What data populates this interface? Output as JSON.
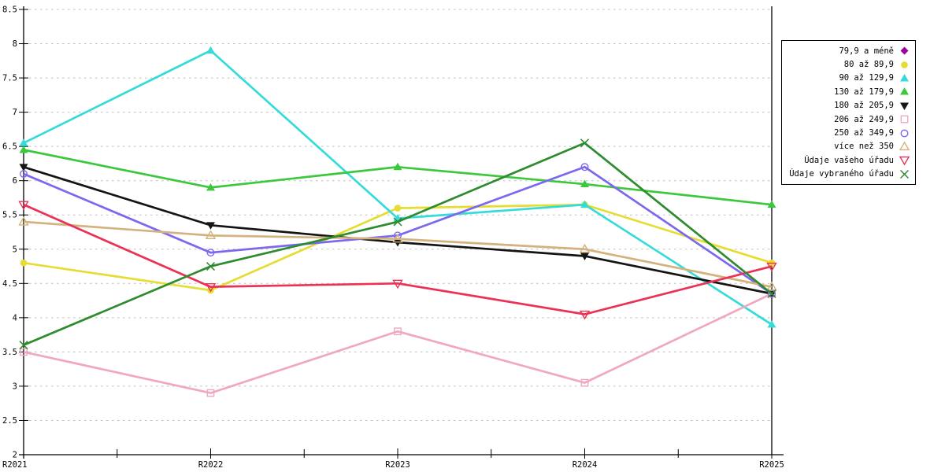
{
  "chart_data": {
    "type": "line",
    "title": "",
    "xlabel": "",
    "ylabel": "",
    "x_categories": [
      "R2021",
      "R2022",
      "R2023",
      "R2024",
      "R2025"
    ],
    "y_axis": {
      "min": 2,
      "max": 8.5,
      "step": 0.5,
      "tick_labels": [
        "2",
        "2.5",
        "3",
        "3.5",
        "4",
        "4.5",
        "5",
        "5.5",
        "6",
        "6.5",
        "7",
        "7.5",
        "8",
        "8.5"
      ]
    },
    "grid": {
      "horizontal": true,
      "style": "dashed",
      "color": "#bdbdbd"
    },
    "legend": {
      "position": "outside-top-right",
      "border": true
    },
    "series": [
      {
        "name": "79,9 a méně",
        "color": "#a000a0",
        "marker": "diamond-filled",
        "values": [
          null,
          null,
          null,
          null,
          null
        ]
      },
      {
        "name": "80 až 89,9",
        "color": "#e6dc32",
        "marker": "circle-filled",
        "values": [
          4.8,
          4.4,
          5.6,
          5.65,
          4.8
        ]
      },
      {
        "name": "90 až 129,9",
        "color": "#35dbdb",
        "marker": "triangle-up-filled",
        "values": [
          6.55,
          7.9,
          5.45,
          5.65,
          3.9
        ]
      },
      {
        "name": "130 až 179,9",
        "color": "#3cc83c",
        "marker": "triangle-up-filled",
        "values": [
          6.45,
          5.9,
          6.2,
          5.95,
          5.65
        ]
      },
      {
        "name": "180 až 205,9",
        "color": "#141414",
        "marker": "triangle-down-filled",
        "values": [
          6.2,
          5.35,
          5.1,
          4.9,
          4.35
        ]
      },
      {
        "name": "206 až 249,9",
        "color": "#f0a8c0",
        "marker": "square-open",
        "values": [
          3.5,
          2.9,
          3.8,
          3.05,
          4.35
        ]
      },
      {
        "name": "250 až 349,9",
        "color": "#7b68ee",
        "marker": "circle-open",
        "values": [
          6.1,
          4.95,
          5.2,
          6.2,
          4.35
        ]
      },
      {
        "name": "více než 350",
        "color": "#d4b27e",
        "marker": "triangle-up-open",
        "values": [
          5.4,
          5.2,
          5.15,
          5.0,
          4.45
        ]
      },
      {
        "name": "Údaje vašeho úřadu",
        "color": "#eb3155",
        "marker": "triangle-down-open",
        "values": [
          5.65,
          4.45,
          4.5,
          4.05,
          4.75
        ]
      },
      {
        "name": "Údaje vybraného úřadu",
        "color": "#2e8b2e",
        "marker": "x-cross",
        "values": [
          3.6,
          4.75,
          5.4,
          6.55,
          4.35
        ]
      }
    ]
  },
  "colors": {
    "background": "#ffffff",
    "axis": "#000000",
    "gridline": "#bdbdbd"
  }
}
